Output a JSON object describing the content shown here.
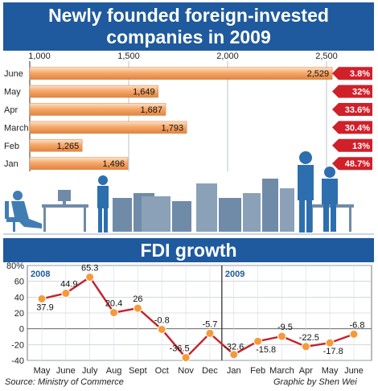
{
  "header": {
    "title_line1": "Newly founded foreign-invested",
    "title_line2": "companies in 2009"
  },
  "section2": {
    "title": "FDI growth"
  },
  "footer": {
    "source": "Source: Ministry of Commerce",
    "credit": "Graphic by Shen Wei"
  },
  "colors": {
    "banner": "#1f5a9e",
    "bar": "#f0a064",
    "badge": "#d0202a",
    "line": "#c4222a",
    "marker": "#f59a3a"
  },
  "chart_data": [
    {
      "type": "bar",
      "orientation": "horizontal",
      "title": "Newly founded foreign-invested companies in 2009",
      "categories": [
        "June",
        "May",
        "Apr",
        "March",
        "Feb",
        "Jan"
      ],
      "values": [
        2529,
        1649,
        1687,
        1793,
        1265,
        1496
      ],
      "value_labels": [
        "2,529",
        "1,649",
        "1,687",
        "1,793",
        "1,265",
        "1,496"
      ],
      "growth_labels": [
        "3.8%",
        "32%",
        "33.6%",
        "30.4%",
        "13%",
        "48.7%"
      ],
      "xlim": [
        1000,
        2500
      ],
      "xticks": [
        1000,
        1500,
        2000,
        2500
      ],
      "xtick_labels": [
        "1,000",
        "1,500",
        "2,000",
        "2,500"
      ]
    },
    {
      "type": "line",
      "title": "FDI growth",
      "x": [
        "May",
        "June",
        "July",
        "Aug",
        "Sept",
        "Oct",
        "Nov",
        "Dec",
        "Jan",
        "Feb",
        "March",
        "Apr",
        "May",
        "June"
      ],
      "series": [
        {
          "values": [
            37.9,
            44.9,
            65.3,
            20.4,
            26,
            -0.8,
            -36.5,
            -5.7,
            -32.6,
            -15.8,
            -9.5,
            -22.5,
            -17.8,
            -6.8
          ]
        }
      ],
      "value_labels": [
        "37.9",
        "44.9",
        "65.3",
        "20.4",
        "26",
        "-0.8",
        "-36.5",
        "-5.7",
        "-32.6",
        "-15.8",
        "-9.5",
        "-22.5",
        "-17.8",
        "-6.8"
      ],
      "ylim": [
        -40,
        80
      ],
      "yticks": [
        80,
        60,
        40,
        20,
        0,
        -20,
        -40
      ],
      "ytick_labels": [
        "80%",
        "60",
        "40",
        "20",
        "0",
        "-20",
        "-40"
      ],
      "year_labels": [
        "2008",
        "2009"
      ]
    }
  ]
}
